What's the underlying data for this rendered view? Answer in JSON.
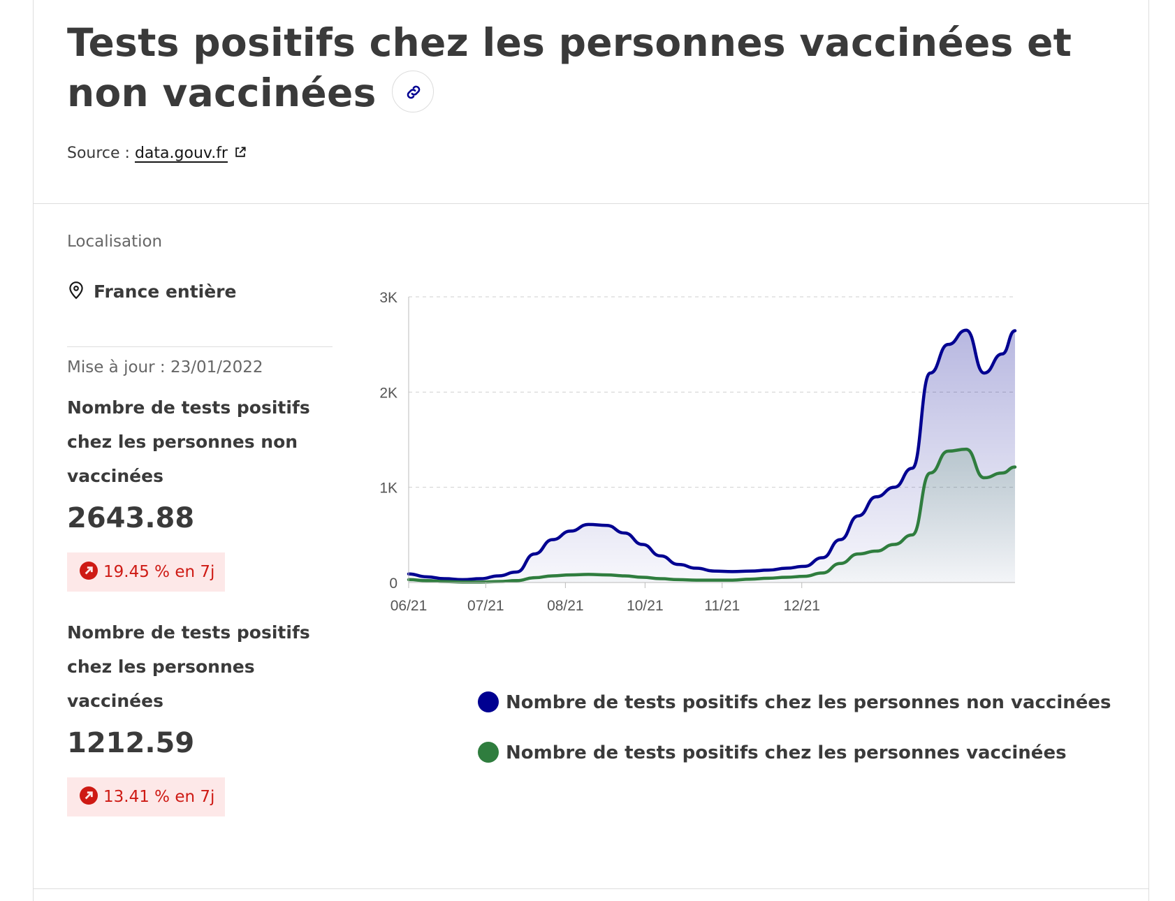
{
  "header": {
    "title": "Tests positifs chez les personnes vaccinées et non vaccinées",
    "source_label": "Source : ",
    "source_link": "data.gouv.fr"
  },
  "sidebar": {
    "location_label": "Localisation",
    "location_value": "France entière",
    "update_label": "Mise à jour : 23/01/2022",
    "kpis": [
      {
        "title": "Nombre de tests positifs chez les personnes non vaccinées",
        "value": "2643.88",
        "trend": "19.45 % en 7j"
      },
      {
        "title": "Nombre de tests positifs chez les personnes vaccinées",
        "value": "1212.59",
        "trend": "13.41 % en 7j"
      }
    ]
  },
  "colors": {
    "unvaccinated": "#000091",
    "vaccinated": "#2f7d3e",
    "trend_up": "#ce1a14",
    "trend_bg": "#fde8e8"
  },
  "chart_data": {
    "type": "area",
    "title": "",
    "xlabel": "",
    "ylabel": "",
    "ylim": [
      0,
      3000
    ],
    "y_ticks": [
      "0",
      "1K",
      "2K",
      "3K"
    ],
    "x_ticks": [
      "06/21",
      "07/21",
      "08/21",
      "10/21",
      "11/21",
      "12/21"
    ],
    "x": [
      "2021-06-01",
      "2021-06-08",
      "2021-06-15",
      "2021-06-22",
      "2021-06-29",
      "2021-07-06",
      "2021-07-13",
      "2021-07-20",
      "2021-07-27",
      "2021-08-03",
      "2021-08-10",
      "2021-08-17",
      "2021-08-24",
      "2021-08-31",
      "2021-09-07",
      "2021-09-14",
      "2021-09-21",
      "2021-09-28",
      "2021-10-05",
      "2021-10-12",
      "2021-10-19",
      "2021-10-26",
      "2021-11-02",
      "2021-11-09",
      "2021-11-16",
      "2021-11-23",
      "2021-11-30",
      "2021-12-07",
      "2021-12-14",
      "2021-12-21",
      "2021-12-28",
      "2022-01-04",
      "2022-01-11",
      "2022-01-18",
      "2022-01-23"
    ],
    "series": [
      {
        "name": "Nombre de tests positifs chez les personnes non vaccinées",
        "values": [
          90,
          60,
          40,
          30,
          40,
          70,
          110,
          300,
          450,
          540,
          610,
          600,
          520,
          400,
          280,
          190,
          150,
          120,
          115,
          120,
          130,
          150,
          170,
          260,
          450,
          700,
          900,
          1000,
          1200,
          2200,
          2500,
          2650,
          2200,
          2400,
          2643.88
        ]
      },
      {
        "name": "Nombre de tests positifs chez les personnes vaccinées",
        "values": [
          30,
          20,
          10,
          5,
          5,
          10,
          20,
          50,
          70,
          80,
          85,
          80,
          70,
          55,
          40,
          30,
          25,
          25,
          25,
          35,
          45,
          55,
          65,
          100,
          200,
          300,
          330,
          400,
          500,
          1150,
          1380,
          1400,
          1100,
          1150,
          1212.59
        ]
      }
    ]
  }
}
